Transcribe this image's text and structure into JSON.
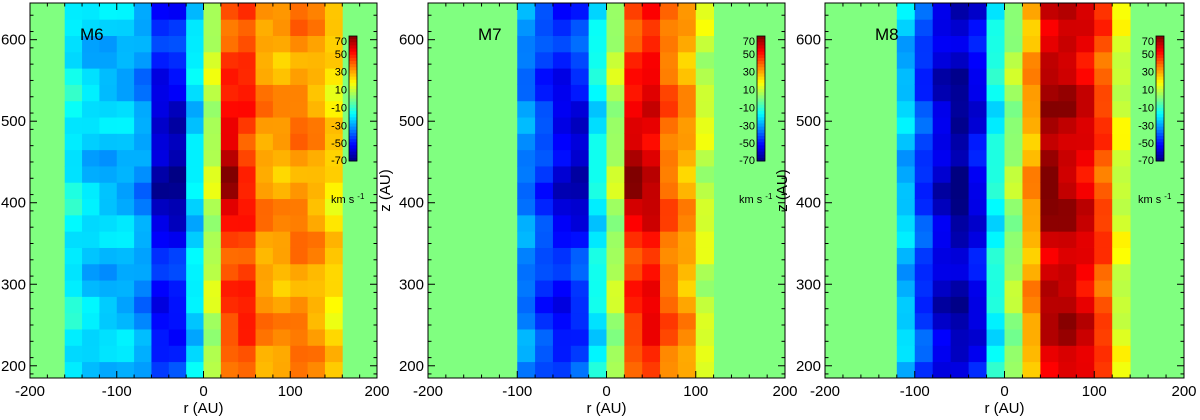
{
  "chart_data": {
    "type": "heatmap",
    "colormap": "jet",
    "value_range": [
      -70,
      70
    ],
    "colorbar": {
      "ticks": [
        70,
        50,
        30,
        10,
        -10,
        -30,
        -50,
        -70
      ],
      "tick_labels": [
        "70",
        "50",
        "30",
        "10",
        "-10",
        "-30",
        "-50",
        "-70"
      ],
      "unit_main": "km s",
      "unit_sup": "-1"
    },
    "xlim": [
      -200,
      200
    ],
    "ylim": [
      185,
      645
    ],
    "xticks": [
      -200,
      -100,
      0,
      100,
      200
    ],
    "xtick_labels": [
      "-200",
      "-100",
      "0",
      "100",
      "200"
    ],
    "yticks": [
      200,
      300,
      400,
      500,
      600
    ],
    "ytick_labels": [
      "200",
      "300",
      "400",
      "500",
      "600"
    ],
    "xlabel": "r (AU)",
    "ylabel": "z (AU)",
    "cell_r_edges": [
      -160,
      -140,
      -120,
      -100,
      -80,
      -60,
      -40,
      -20,
      0,
      20,
      40,
      60,
      80,
      100,
      120,
      140,
      160
    ],
    "cell_z_height": 20,
    "panels": [
      {
        "label": "M6",
        "columns": [
          {
            "r": -150,
            "v": -18
          },
          {
            "r": -130,
            "v": -24
          },
          {
            "r": -110,
            "v": -26
          },
          {
            "r": -90,
            "v": -26
          },
          {
            "r": -70,
            "v": -32
          },
          {
            "r": -50,
            "v": -50,
            "core": -64
          },
          {
            "r": -30,
            "v": -48,
            "core": -70
          },
          {
            "r": -10,
            "v": -22
          },
          {
            "r": 10,
            "v": 8
          },
          {
            "r": 30,
            "v": 42,
            "core": 66
          },
          {
            "r": 50,
            "v": 46
          },
          {
            "r": 70,
            "v": 32
          },
          {
            "r": 90,
            "v": 30
          },
          {
            "r": 110,
            "v": 34
          },
          {
            "r": 130,
            "v": 30
          },
          {
            "r": 150,
            "v": 22
          }
        ]
      },
      {
        "label": "M7",
        "columns": [
          {
            "r": -90,
            "v": -34
          },
          {
            "r": -70,
            "v": -44
          },
          {
            "r": -50,
            "v": -50,
            "core": -58
          },
          {
            "r": -30,
            "v": -44,
            "core": -66
          },
          {
            "r": -10,
            "v": -18
          },
          {
            "r": 10,
            "v": 6
          },
          {
            "r": 30,
            "v": 44,
            "core": 68
          },
          {
            "r": 50,
            "v": 52,
            "core": 60
          },
          {
            "r": 70,
            "v": 38
          },
          {
            "r": 90,
            "v": 30
          },
          {
            "r": 110,
            "v": 10
          }
        ]
      },
      {
        "label": "M8",
        "columns": [
          {
            "r": -110,
            "v": -26
          },
          {
            "r": -90,
            "v": -44
          },
          {
            "r": -70,
            "v": -58
          },
          {
            "r": -50,
            "v": -62,
            "core": -70
          },
          {
            "r": -30,
            "v": -54
          },
          {
            "r": -10,
            "v": -16
          },
          {
            "r": 10,
            "v": 4
          },
          {
            "r": 30,
            "v": 30
          },
          {
            "r": 50,
            "v": 60,
            "core": 70
          },
          {
            "r": 70,
            "v": 62
          },
          {
            "r": 90,
            "v": 56
          },
          {
            "r": 110,
            "v": 42
          },
          {
            "r": 130,
            "v": 12
          }
        ]
      }
    ]
  }
}
